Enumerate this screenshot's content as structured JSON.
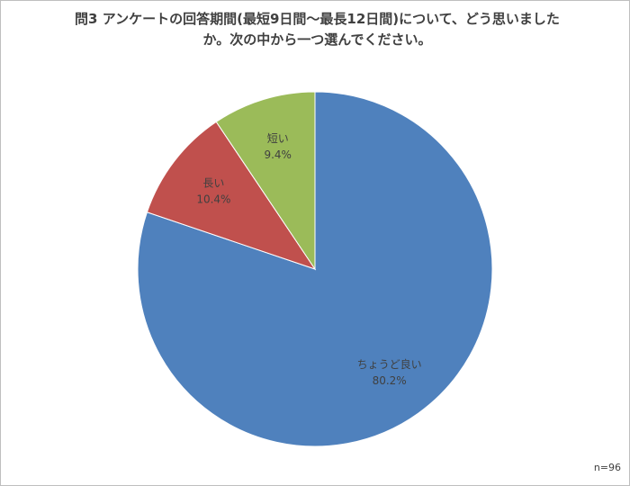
{
  "chart_data": {
    "type": "pie",
    "title": "問3 アンケートの回答期間(最短9日間～最長12日間)について、どう思いましたか。次の中から一つ選んでください。",
    "categories": [
      "ちょうど良い",
      "長い",
      "短い"
    ],
    "values": [
      80.2,
      10.4,
      9.4
    ],
    "value_labels": [
      "80.2%",
      "10.4%",
      "9.4%"
    ],
    "colors": [
      "#4f81bd",
      "#c0504d",
      "#9bbb59"
    ],
    "note": "n=96"
  }
}
